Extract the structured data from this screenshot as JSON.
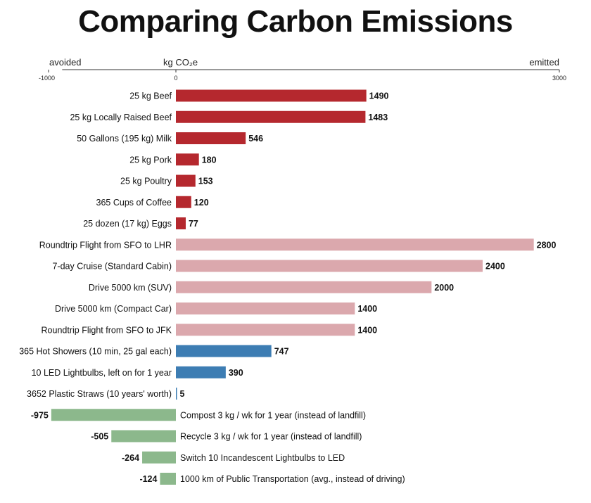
{
  "title": "Comparing Carbon Emissions",
  "chart_data": {
    "type": "bar",
    "orientation": "horizontal",
    "title": "Comparing Carbon Emissions",
    "xlabel": "kg CO₂e",
    "left_label": "avoided",
    "right_label": "emitted",
    "xlim": [
      -1000,
      3000
    ],
    "ticks": [
      -1000,
      0,
      3000
    ],
    "tick_labels": [
      "-1000",
      "0",
      "3000"
    ],
    "grid": false,
    "legend": "none",
    "colors": {
      "food": "#b5282e",
      "travel": "#dba8ad",
      "home": "#3d7db3",
      "avoided": "#8cb88c"
    },
    "categories": [
      "25 kg Beef",
      "25 kg Locally Raised Beef",
      "50 Gallons (195 kg) Milk",
      "25 kg Pork",
      "25 kg Poultry",
      "365 Cups of Coffee",
      "25 dozen (17 kg) Eggs",
      "Roundtrip Flight from SFO to LHR",
      "7-day Cruise (Standard Cabin)",
      "Drive 5000 km (SUV)",
      "Drive 5000 km (Compact Car)",
      "Roundtrip Flight from SFO to JFK",
      "365 Hot Showers (10 min, 25 gal each)",
      "10 LED Lightbulbs, left on for 1 year",
      "3652 Plastic Straws (10 years' worth)",
      "Compost 3 kg / wk for 1 year (instead of landfill)",
      "Recycle 3 kg / wk for 1 year (instead of landfill)",
      "Switch 10 Incandescent Lightbulbs to LED",
      "1000 km of Public Transportation (avg., instead of driving)"
    ],
    "values": [
      1490,
      1483,
      546,
      180,
      153,
      120,
      77,
      2800,
      2400,
      2000,
      1400,
      1400,
      747,
      390,
      5,
      -975,
      -505,
      -264,
      -124
    ],
    "groups": [
      "food",
      "food",
      "food",
      "food",
      "food",
      "food",
      "food",
      "travel",
      "travel",
      "travel",
      "travel",
      "travel",
      "home",
      "home",
      "home",
      "avoided",
      "avoided",
      "avoided",
      "avoided"
    ]
  }
}
